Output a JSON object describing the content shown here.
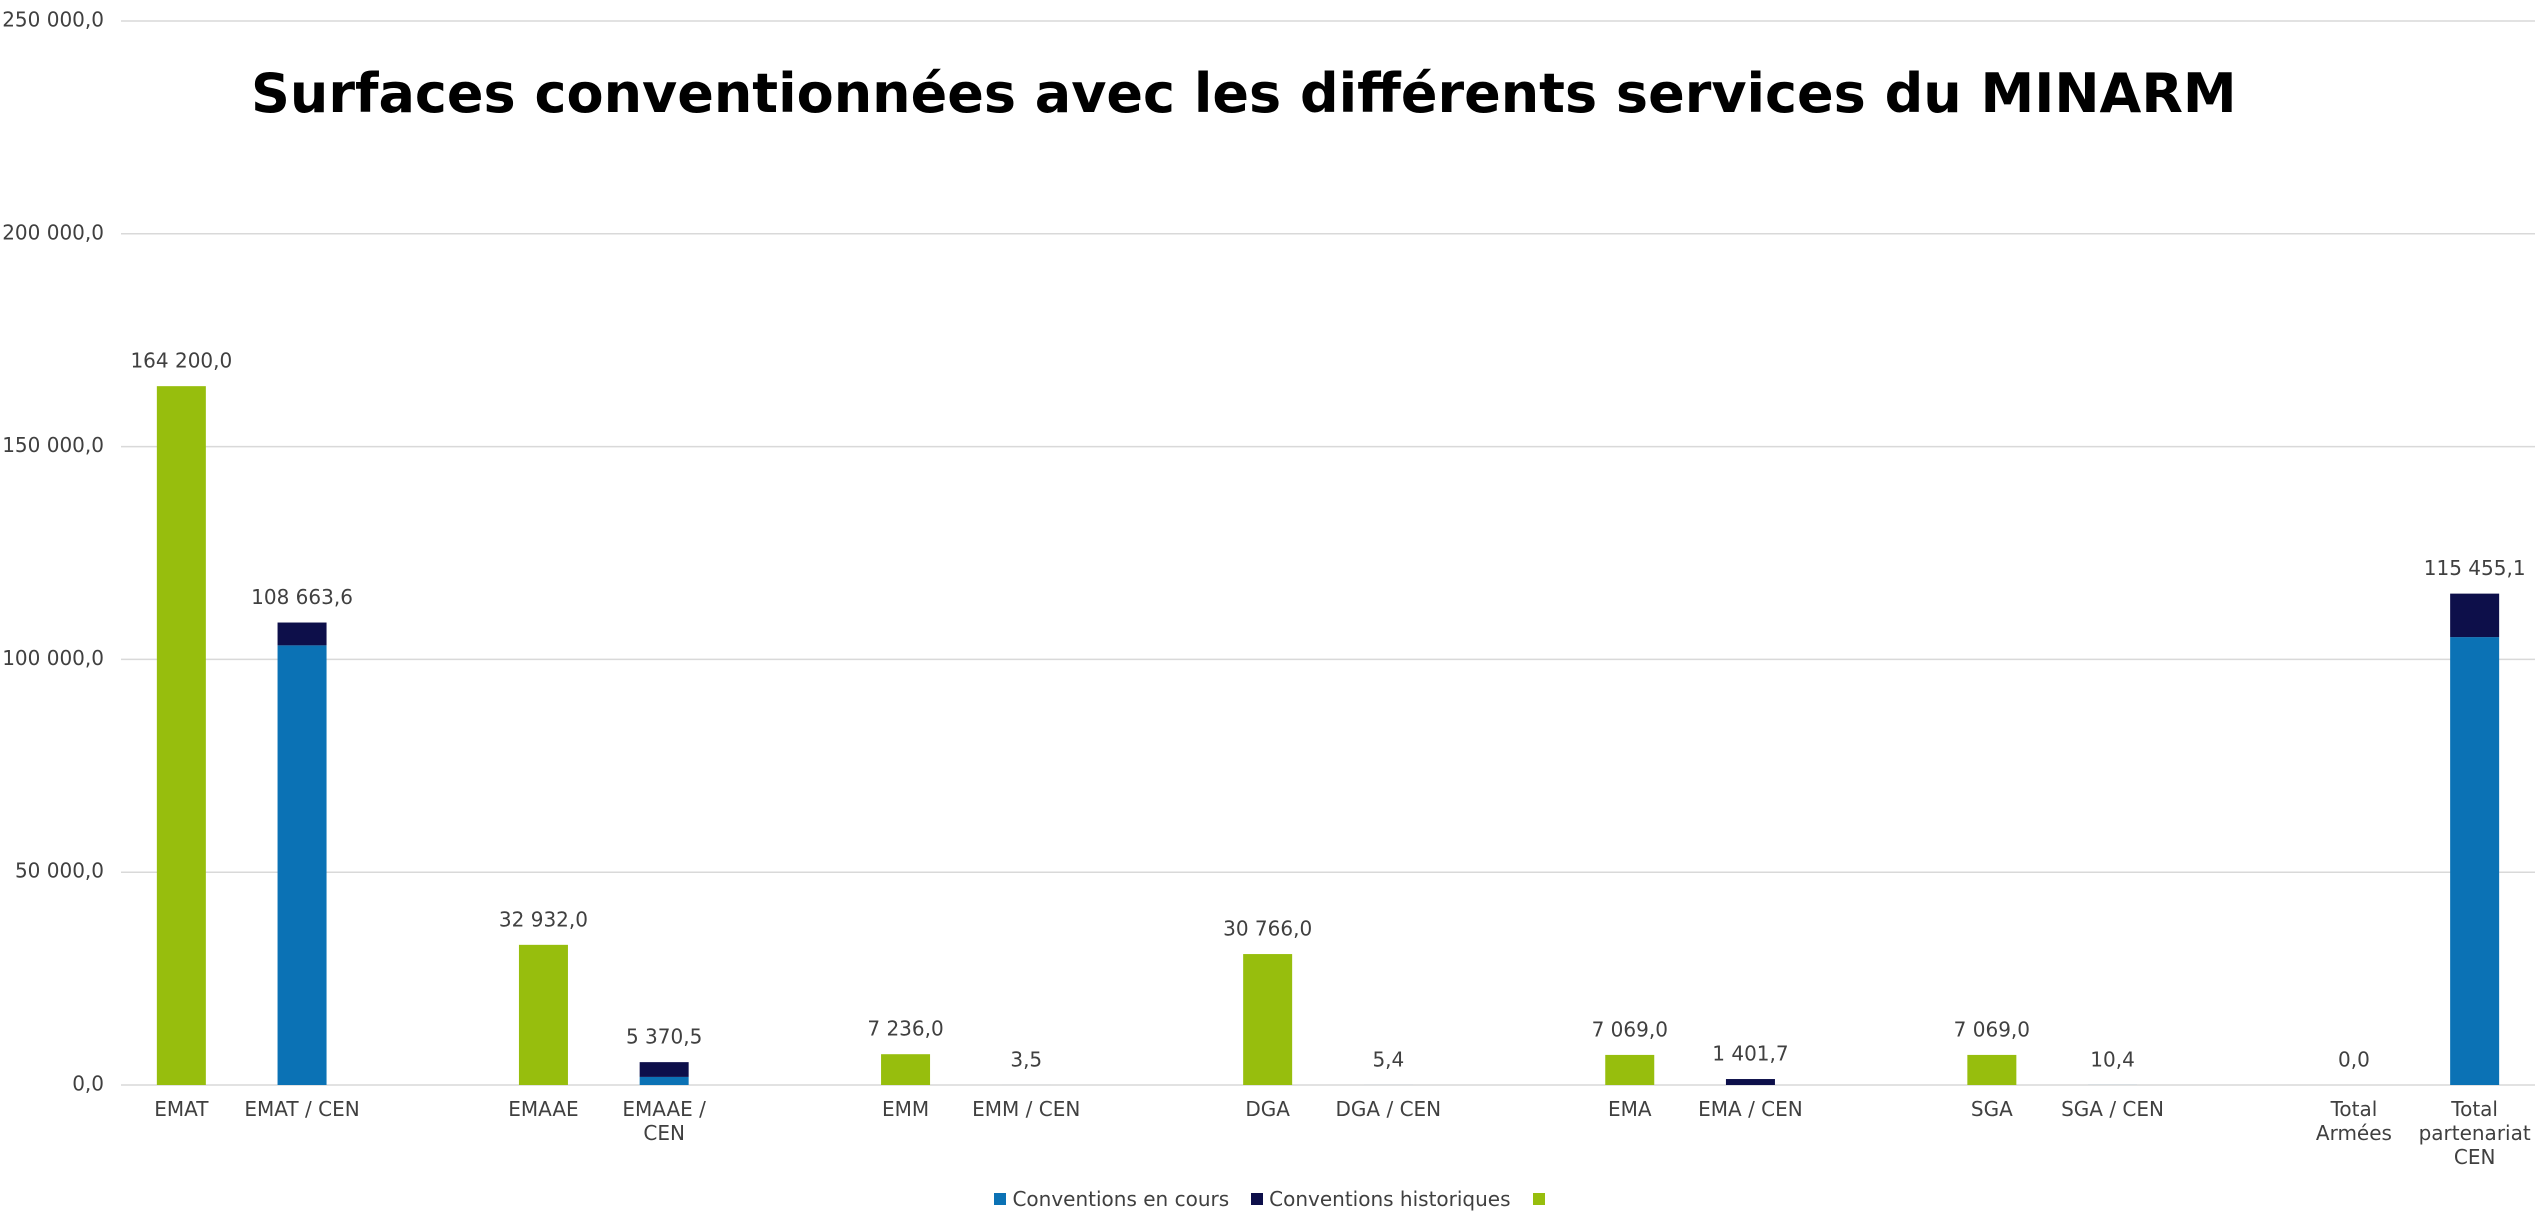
{
  "chart_data": {
    "type": "bar",
    "stacked": true,
    "title": "Surfaces conventionnées avec les différents services du MINARM",
    "categories": [
      "EMAT",
      "EMAT / CEN",
      null,
      "EMAAE",
      "EMAAE / CEN",
      null,
      "EMM",
      "EMM / CEN",
      null,
      "DGA",
      "DGA / CEN",
      null,
      "EMA",
      "EMA / CEN",
      null,
      "SGA",
      "SGA / CEN",
      null,
      "Total Armées",
      "Total partenariat CEN"
    ],
    "series": [
      {
        "name": "Conventions en cours",
        "color": "#0b72b5",
        "values": [
          null,
          103300,
          null,
          null,
          1900,
          null,
          null,
          3.5,
          null,
          null,
          5.4,
          null,
          null,
          null,
          null,
          null,
          10.4,
          null,
          null,
          105240
        ]
      },
      {
        "name": "Conventions historiques",
        "color": "#0d0f4a",
        "values": [
          null,
          5363.6,
          null,
          null,
          3470.5,
          null,
          null,
          null,
          null,
          null,
          null,
          null,
          null,
          1401.7,
          null,
          null,
          null,
          null,
          null,
          10215.1
        ]
      },
      {
        "color": "#97be0d",
        "values": [
          164200,
          null,
          null,
          32932,
          null,
          null,
          7236,
          null,
          null,
          30766,
          null,
          null,
          7069,
          null,
          null,
          7069,
          null,
          null,
          0,
          null
        ]
      }
    ],
    "totals": {
      "values": [
        164200,
        108663.6,
        null,
        32932,
        5370.5,
        null,
        7236,
        3.5,
        null,
        30766,
        5.4,
        null,
        7069,
        1401.7,
        null,
        7069,
        10.4,
        null,
        0,
        115455.1
      ],
      "value_labels": [
        "164 200,0",
        "108 663,6",
        null,
        "32 932,0",
        "5 370,5",
        null,
        "7 236,0",
        "3,5",
        null,
        "30 766,0",
        "5,4",
        null,
        "7 069,0",
        "1 401,7",
        null,
        "7 069,0",
        "10,4",
        null,
        "0,0",
        "115 455,1"
      ]
    },
    "ylim": [
      0,
      250000
    ],
    "yticks": [
      {
        "value": 0,
        "label": "0,0"
      },
      {
        "value": 50000,
        "label": "50 000,0"
      },
      {
        "value": 100000,
        "label": "100 000,0"
      },
      {
        "value": 150000,
        "label": "150 000,0"
      },
      {
        "value": 200000,
        "label": "200 000,0"
      },
      {
        "value": 250000,
        "label": "250 000,0"
      }
    ],
    "grid": true,
    "legend": "bottom"
  }
}
